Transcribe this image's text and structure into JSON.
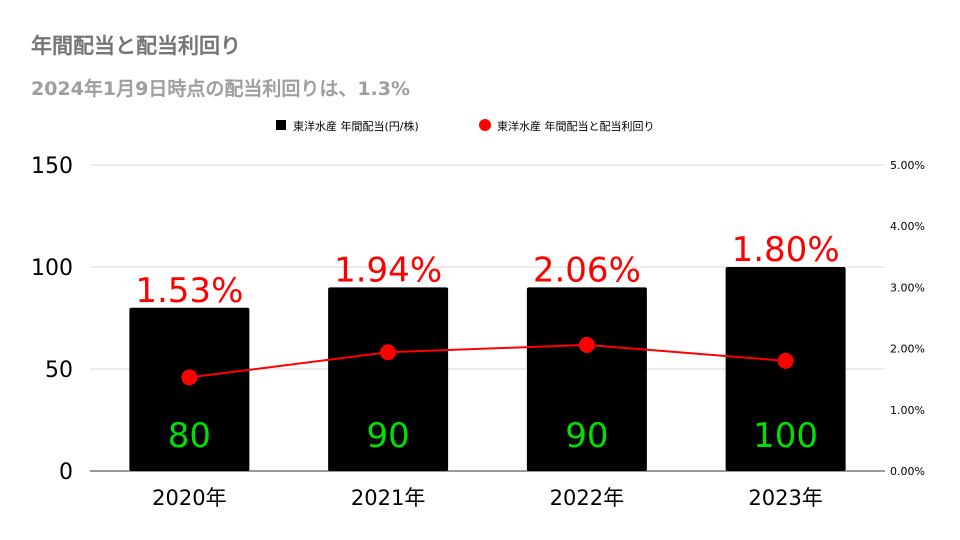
{
  "title": "年間配当と配当利回り",
  "subtitle": "2024年1月9日時点の配当利回りは、1.3%",
  "chart_data": {
    "type": "bar+line",
    "categories": [
      "2020年",
      "2021年",
      "2022年",
      "2023年"
    ],
    "series": [
      {
        "name": "東洋水産 年間配当(円/株)",
        "type": "bar",
        "axis": "left",
        "color": "#000000",
        "values": [
          80,
          90,
          90,
          100
        ],
        "labels": [
          "80",
          "90",
          "90",
          "100"
        ],
        "label_color": "#00e000"
      },
      {
        "name": "東洋水産 年間配当と配当利回り",
        "type": "line",
        "axis": "right",
        "color": "#ff0000",
        "values": [
          1.53,
          1.94,
          2.06,
          1.8
        ],
        "labels": [
          "1.53%",
          "1.94%",
          "2.06%",
          "1.80%"
        ]
      }
    ],
    "y_left": {
      "min": 0,
      "max": 150,
      "ticks": [
        "0",
        "50",
        "100",
        "150"
      ]
    },
    "y_right": {
      "min": 0,
      "max": 5,
      "ticks": [
        "0.00%",
        "1.00%",
        "2.00%",
        "3.00%",
        "4.00%",
        "5.00%"
      ]
    },
    "legend": "top-center",
    "grid": true
  }
}
